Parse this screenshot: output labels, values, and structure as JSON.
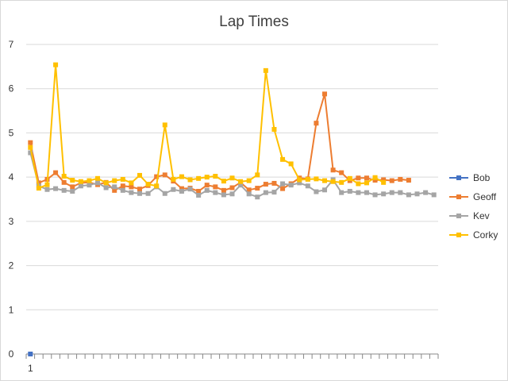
{
  "chart_data": {
    "type": "line",
    "title": "Lap Times",
    "xlabel": "",
    "ylabel": "",
    "ylim": [
      0,
      7
    ],
    "yticks": [
      "0",
      "1",
      "2",
      "3",
      "4",
      "5",
      "6",
      "7"
    ],
    "xtick_label": "1",
    "grid": "horizontal",
    "legend_position": "right",
    "series": [
      {
        "name": "Bob",
        "color": "#4472c4",
        "values": [
          0
        ]
      },
      {
        "name": "Geoff",
        "color": "#ed7d31",
        "values": [
          4.78,
          3.87,
          3.95,
          4.1,
          3.88,
          3.78,
          3.87,
          3.88,
          3.83,
          3.88,
          3.7,
          3.8,
          3.78,
          3.73,
          3.81,
          4.01,
          4.05,
          3.91,
          3.74,
          3.75,
          3.68,
          3.82,
          3.78,
          3.7,
          3.76,
          3.88,
          3.71,
          3.75,
          3.84,
          3.86,
          3.74,
          3.85,
          3.98,
          3.96,
          5.22,
          5.88,
          4.16,
          4.1,
          3.92,
          3.98,
          3.98,
          3.93,
          3.94,
          3.92,
          3.95,
          3.93
        ]
      },
      {
        "name": "Kev",
        "color": "#a5a5a5",
        "values": [
          4.55,
          3.8,
          3.72,
          3.74,
          3.7,
          3.68,
          3.8,
          3.82,
          3.87,
          3.76,
          3.78,
          3.7,
          3.65,
          3.63,
          3.63,
          3.78,
          3.63,
          3.72,
          3.68,
          3.73,
          3.59,
          3.7,
          3.65,
          3.6,
          3.62,
          3.82,
          3.62,
          3.55,
          3.65,
          3.66,
          3.85,
          3.82,
          3.87,
          3.8,
          3.67,
          3.71,
          3.94,
          3.65,
          3.68,
          3.65,
          3.65,
          3.6,
          3.62,
          3.65,
          3.65,
          3.6,
          3.62,
          3.65,
          3.6
        ]
      },
      {
        "name": "Corky",
        "color": "#ffc000",
        "values": [
          4.67,
          3.75,
          3.83,
          6.54,
          4.02,
          3.93,
          3.9,
          3.92,
          3.97,
          3.87,
          3.92,
          3.95,
          3.87,
          4.04,
          3.84,
          3.8,
          5.18,
          3.95,
          4.01,
          3.94,
          3.97,
          4.0,
          4.02,
          3.91,
          3.98,
          3.9,
          3.92,
          4.05,
          6.41,
          5.08,
          4.4,
          4.3,
          3.94,
          3.95,
          3.96,
          3.92,
          3.9,
          3.88,
          3.97,
          3.85,
          3.87,
          3.99,
          3.88
        ]
      }
    ]
  }
}
